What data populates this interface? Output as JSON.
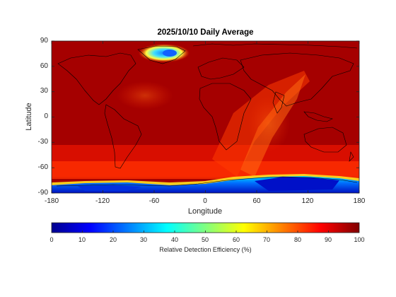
{
  "title": "2025/10/10 Daily Average",
  "xlabel": "Longitude",
  "ylabel": "Latitude",
  "x_ticks": [
    "-180",
    "-120",
    "-60",
    "0",
    "60",
    "120",
    "180"
  ],
  "y_ticks": [
    "90",
    "60",
    "30",
    "0",
    "-30",
    "-60",
    "-90"
  ],
  "colorbar": {
    "label": "Relative Detection Efficiency (%)",
    "ticks": [
      "0",
      "10",
      "20",
      "30",
      "40",
      "50",
      "60",
      "70",
      "80",
      "90",
      "100"
    ],
    "colormap": "jet"
  },
  "map": {
    "projection": "equirectangular",
    "lon_range": [
      -180,
      180
    ],
    "lat_range": [
      -90,
      90
    ],
    "coastlines": true,
    "background_value": 95
  }
}
